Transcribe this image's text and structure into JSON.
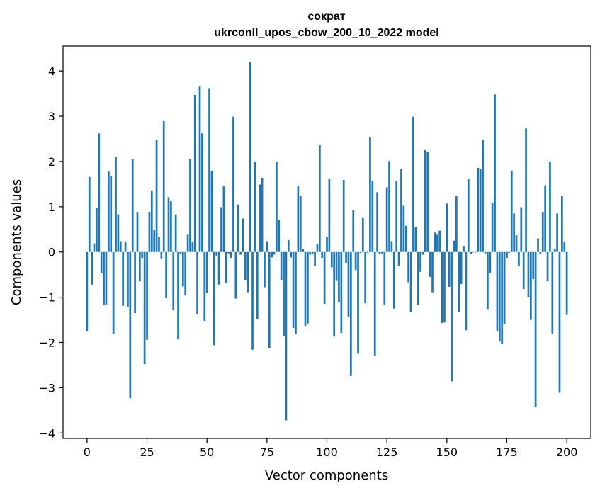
{
  "chart_data": {
    "type": "bar",
    "title": "сократ",
    "subtitle": "ukrconll_upos_cbow_200_10_2022 model",
    "xlabel": "Vector components",
    "ylabel": "Components values",
    "xlim": [
      -10,
      210
    ],
    "ylim": [
      -4.12,
      4.55
    ],
    "xticks": [
      0,
      25,
      50,
      75,
      100,
      125,
      150,
      175,
      200
    ],
    "yticks": [
      -4,
      -3,
      -2,
      -1,
      0,
      1,
      2,
      3,
      4
    ],
    "xtick_labels": [
      "0",
      "25",
      "50",
      "75",
      "100",
      "125",
      "150",
      "175",
      "200"
    ],
    "ytick_labels": [
      "−4",
      "−3",
      "−2",
      "−1",
      "0",
      "1",
      "2",
      "3",
      "4"
    ],
    "grid": false,
    "legend": "none",
    "bar_color": "#1f77b4",
    "values": [
      -1.75,
      1.66,
      -0.72,
      0.19,
      0.97,
      2.62,
      -0.47,
      -1.17,
      -1.16,
      1.78,
      1.67,
      -1.81,
      2.1,
      0.83,
      0.24,
      -1.19,
      0.22,
      -1.22,
      -3.23,
      2.05,
      -1.35,
      0.87,
      -0.65,
      -0.13,
      -2.48,
      -1.94,
      0.88,
      1.36,
      0.48,
      2.48,
      0.34,
      -0.14,
      2.89,
      -1.02,
      1.21,
      1.12,
      -1.29,
      0.83,
      -1.93,
      -0.04,
      -0.76,
      -0.96,
      0.38,
      2.06,
      0.22,
      3.47,
      -1.38,
      3.67,
      2.62,
      -1.52,
      -0.91,
      3.62,
      1.78,
      -2.06,
      -0.08,
      -0.72,
      0.99,
      1.45,
      -0.68,
      -0.03,
      -0.13,
      2.99,
      -1.03,
      1.05,
      -0.06,
      0.74,
      -0.62,
      -0.89,
      4.19,
      -2.16,
      2.0,
      -1.48,
      1.49,
      1.64,
      -0.78,
      0.24,
      -2.12,
      -0.12,
      -0.06,
      1.99,
      0.7,
      -0.62,
      -1.86,
      -3.72,
      0.26,
      -0.12,
      -1.68,
      -1.81,
      1.45,
      1.24,
      0.07,
      -1.63,
      -1.58,
      -0.06,
      -0.04,
      -0.3,
      0.18,
      2.37,
      -0.13,
      -1.15,
      0.33,
      1.61,
      -0.34,
      -1.87,
      -0.64,
      -1.11,
      -1.79,
      1.59,
      -0.24,
      -1.43,
      -2.74,
      0.92,
      -0.4,
      -2.25,
      -0.02,
      0.75,
      -1.13,
      -0.02,
      2.53,
      1.56,
      -2.3,
      1.32,
      -0.05,
      -0.03,
      -1.16,
      1.43,
      2.01,
      0.24,
      -1.25,
      1.57,
      -0.3,
      1.83,
      1.02,
      0.58,
      -0.67,
      -1.33,
      2.99,
      0.56,
      -1.17,
      -0.44,
      -0.06,
      2.25,
      2.22,
      -0.55,
      -0.89,
      0.43,
      0.38,
      0.47,
      -1.57,
      -1.56,
      1.07,
      -0.77,
      -2.86,
      0.25,
      1.23,
      -1.32,
      -0.71,
      0.12,
      -1.73,
      1.62,
      -0.04,
      -0.01,
      -0.01,
      1.86,
      1.83,
      2.47,
      -0.03,
      -1.26,
      -0.47,
      1.08,
      3.48,
      -1.74,
      -1.98,
      -2.03,
      -1.6,
      -0.13,
      -0.02,
      1.8,
      0.85,
      0.37,
      -0.31,
      0.99,
      -0.82,
      2.73,
      -0.99,
      -1.5,
      -0.6,
      -3.43,
      0.3,
      -0.04,
      0.87,
      1.47,
      -0.65,
      2.0,
      -1.8,
      0.07,
      0.85,
      -3.11,
      1.24,
      0.23,
      -1.39
    ]
  }
}
